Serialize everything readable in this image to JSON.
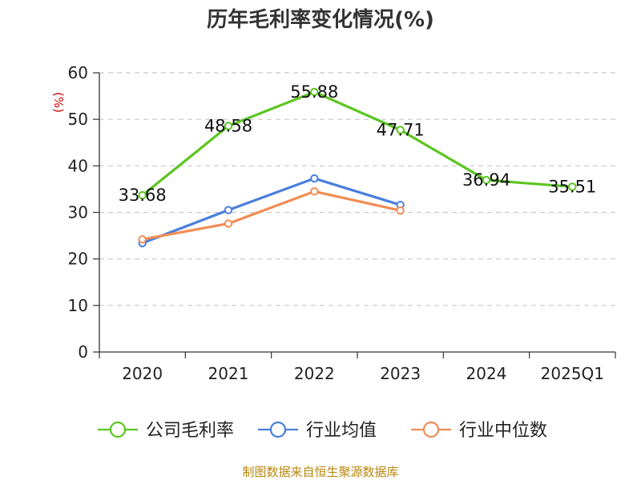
{
  "chart_data": {
    "type": "line",
    "title": "历年毛利率变化情况(%)",
    "ylabel": "(%)",
    "xlabel": "",
    "categories": [
      "2020",
      "2021",
      "2022",
      "2023",
      "2024",
      "2025Q1"
    ],
    "ylim": [
      0,
      60
    ],
    "yticks": [
      "0",
      "10",
      "20",
      "30",
      "40",
      "50",
      "60"
    ],
    "grid": true,
    "legend_position": "bottom",
    "series": [
      {
        "name": "公司毛利率",
        "color": "#5cc520",
        "values": [
          33.68,
          48.58,
          55.88,
          47.71,
          36.94,
          35.51
        ],
        "labels": [
          "33.68",
          "48.58",
          "55.88",
          "47.71",
          "36.94",
          "35.51"
        ]
      },
      {
        "name": "行业均值",
        "color": "#4a7fdc",
        "values": [
          23.4,
          30.5,
          37.3,
          31.6,
          null,
          null
        ]
      },
      {
        "name": "行业中位数",
        "color": "#f28c54",
        "values": [
          24.2,
          27.6,
          34.5,
          30.4,
          null,
          null
        ]
      }
    ]
  },
  "footer": {
    "source": "制图数据来自恒生聚源数据库"
  }
}
